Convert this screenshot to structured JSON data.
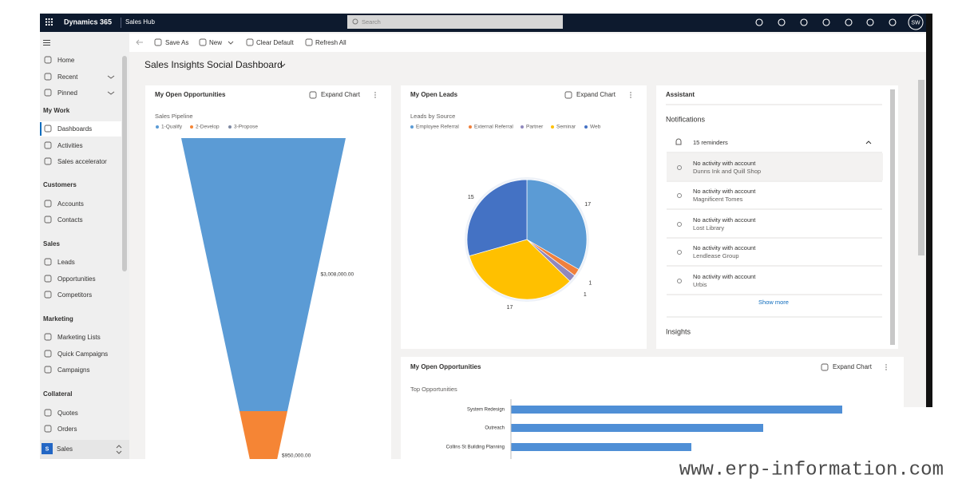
{
  "header": {
    "app": "Dynamics 365",
    "area": "Sales Hub",
    "search": "Search",
    "user": "SW"
  },
  "commandbar": [
    "Save As",
    "New",
    "Clear Default",
    "Refresh All"
  ],
  "sidebar": {
    "top": [
      "Home",
      "Recent",
      "Pinned"
    ],
    "groups": [
      {
        "title": "My Work",
        "items": [
          "Dashboards",
          "Activities",
          "Sales accelerator"
        ]
      },
      {
        "title": "Customers",
        "items": [
          "Accounts",
          "Contacts"
        ]
      },
      {
        "title": "Sales",
        "items": [
          "Leads",
          "Opportunities",
          "Competitors"
        ]
      },
      {
        "title": "Marketing",
        "items": [
          "Marketing Lists",
          "Quick Campaigns",
          "Campaigns"
        ]
      },
      {
        "title": "Collateral",
        "items": [
          "Quotes",
          "Orders"
        ]
      }
    ],
    "area": {
      "badge": "S",
      "label": "Sales"
    }
  },
  "dashboard": {
    "title": "Sales Insights Social Dashboard"
  },
  "assistant": {
    "title": "Assistant",
    "notifications": "Notifications",
    "reminders": "15 reminders",
    "items": [
      {
        "title": "No activity with account",
        "account": "Dunns Ink and Quill Shop"
      },
      {
        "title": "No activity with account",
        "account": "Magnificent Tomes"
      },
      {
        "title": "No activity with account",
        "account": "Lost Library"
      },
      {
        "title": "No activity with account",
        "account": "Lendlease Group"
      },
      {
        "title": "No activity with account",
        "account": "Urbis"
      }
    ],
    "more": "Show more",
    "insights": "Insights"
  },
  "watermark": "www.erp-information.com",
  "chart_data": [
    {
      "type": "funnel",
      "panel": "My Open Opportunities",
      "action": "Expand Chart",
      "title": "Sales Pipeline",
      "categories": [
        "1-Qualify",
        "2-Develop",
        "3-Propose"
      ],
      "colors": [
        "#5b9bd5",
        "#f58535",
        "#7f8aa3"
      ],
      "values": [
        3008000,
        950000,
        null
      ],
      "value_labels": [
        "$3,008,000.00",
        "$950,000.00",
        null
      ]
    },
    {
      "type": "pie",
      "panel": "My Open Leads",
      "action": "Expand Chart",
      "title": "Leads by Source",
      "categories": [
        "Employee Referral",
        "External Referral",
        "Partner",
        "Seminar",
        "Web"
      ],
      "colors": [
        "#5b9bd5",
        "#f0803c",
        "#9088bd",
        "#ffc000",
        "#4472c4"
      ],
      "values": [
        17,
        1,
        1,
        17,
        15
      ]
    },
    {
      "type": "bar",
      "orientation": "horizontal",
      "panel": "My Open Opportunities",
      "action": "Expand Chart",
      "title": "Top Opportunities",
      "categories": [
        "System Redesign",
        "Outreach",
        "Collins St Building Planning"
      ],
      "color": "#4f8fd6",
      "values": [
        415,
        316,
        226
      ]
    }
  ]
}
